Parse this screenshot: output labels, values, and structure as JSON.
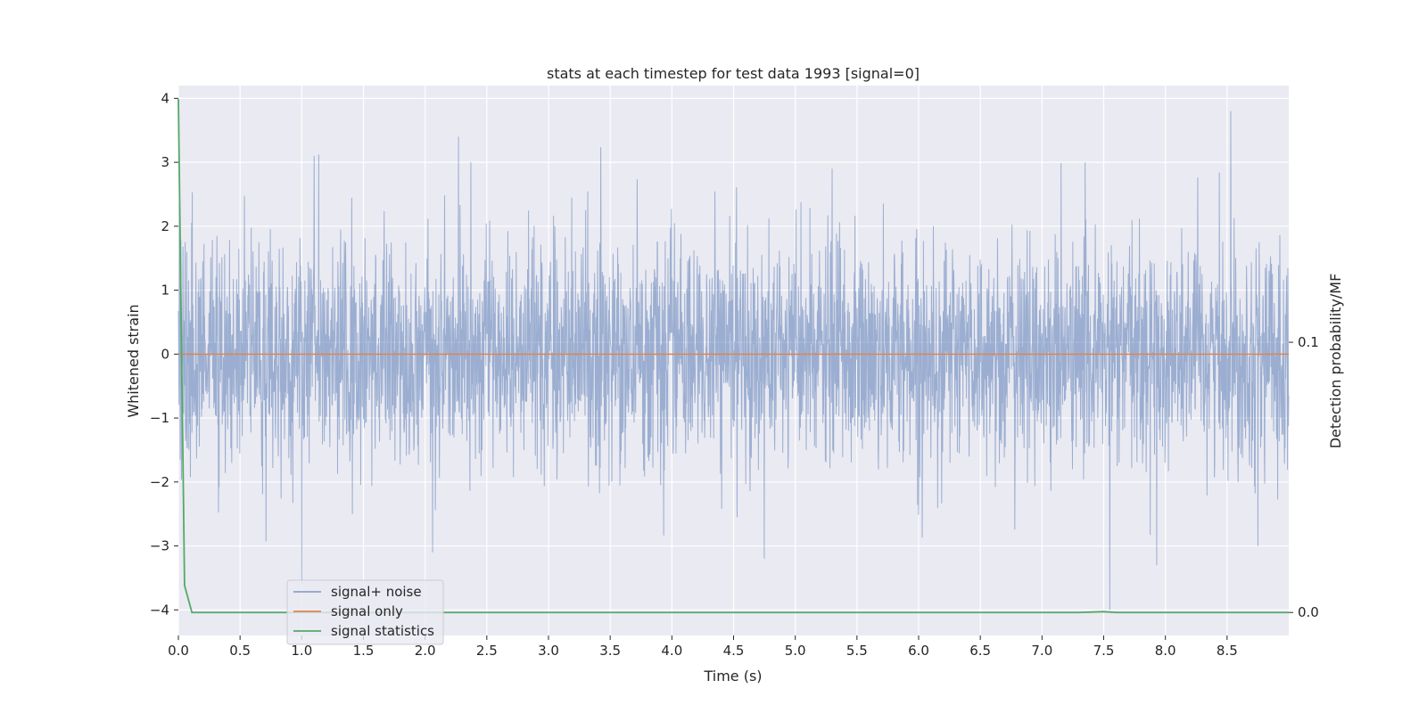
{
  "chart_data": {
    "type": "line",
    "title": "stats at each timestep for test data 1993 [signal=0]",
    "xlabel": "Time (s)",
    "ylabel": "Whitened strain",
    "y2label": "Detection probability/MF",
    "xlim": [
      0.0,
      9.0
    ],
    "ylim": [
      -4.4,
      4.2
    ],
    "y2lim": [
      -0.0085,
      0.195
    ],
    "x_ticks": [
      "0.0",
      "0.5",
      "1.0",
      "1.5",
      "2.0",
      "2.5",
      "3.0",
      "3.5",
      "4.0",
      "4.5",
      "5.0",
      "5.5",
      "6.0",
      "6.5",
      "7.0",
      "7.5",
      "8.0",
      "8.5"
    ],
    "y_ticks": [
      "4",
      "3",
      "2",
      "1",
      "0",
      "−1",
      "−2",
      "−3",
      "−4"
    ],
    "y2_ticks": [
      "0.1",
      "0.0"
    ],
    "grid": true,
    "legend_position": "lower-left",
    "series": [
      {
        "name": "signal+ noise",
        "color": "#4c72b0",
        "description_of_values": "whitened noise, roughly gaussian, amplitude between about -3.6 and 3.8 across 0-9 s",
        "notable_peaks": [
          [
            1.1,
            3.1
          ],
          [
            2.27,
            3.4
          ],
          [
            2.37,
            3.0
          ],
          [
            5.3,
            2.9
          ],
          [
            7.35,
            3.0
          ],
          [
            8.53,
            3.8
          ]
        ],
        "notable_troughs": [
          [
            1.0,
            -3.6
          ],
          [
            2.06,
            -3.1
          ],
          [
            4.75,
            -3.2
          ],
          [
            7.55,
            -4.0
          ],
          [
            7.93,
            -3.3
          ],
          [
            8.75,
            -3.0
          ]
        ]
      },
      {
        "name": "signal only",
        "color": "#dd8452",
        "x": [
          0.0,
          9.0
        ],
        "y": [
          0.0,
          0.0
        ]
      },
      {
        "name": "signal statistics",
        "color": "#55a868",
        "axis": "right",
        "x": [
          0.0,
          0.05,
          0.11,
          0.25,
          7.3,
          7.5,
          7.6,
          9.0
        ],
        "y": [
          0.19,
          0.01,
          0.0,
          0.0,
          0.0,
          0.0003,
          0.0,
          0.0
        ]
      }
    ]
  }
}
